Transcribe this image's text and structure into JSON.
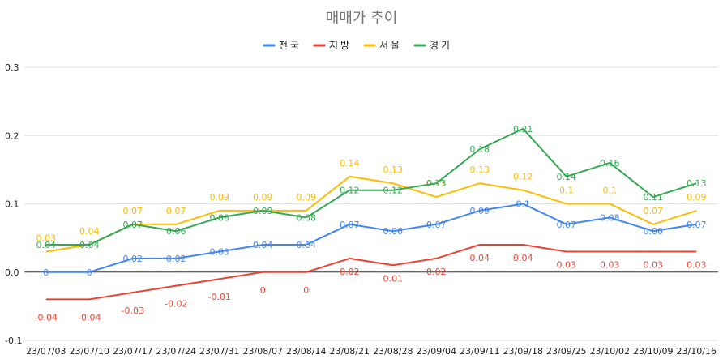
{
  "chart_data": {
    "type": "line",
    "title": "매매가 추이",
    "xlabel": "",
    "ylabel": "",
    "ylim": [
      -0.1,
      0.3
    ],
    "yticks": [
      "-0.1",
      "0.0",
      "0.1",
      "0.2",
      "0.3"
    ],
    "grid": true,
    "legend_position": "top",
    "categories": [
      "23/07/03",
      "23/07/10",
      "23/07/17",
      "23/07/24",
      "23/07/31",
      "23/08/07",
      "23/08/14",
      "23/08/21",
      "23/08/28",
      "23/09/04",
      "23/09/11",
      "23/09/18",
      "23/09/25",
      "23/10/02",
      "23/10/09",
      "23/10/16"
    ],
    "series": [
      {
        "name": "전국",
        "color": "#4285F4",
        "values": [
          0,
          0,
          0.02,
          0.02,
          0.03,
          0.04,
          0.04,
          0.07,
          0.06,
          0.07,
          0.09,
          0.1,
          0.07,
          0.08,
          0.06,
          0.07
        ],
        "labels": [
          "0",
          "0",
          "0.02",
          "0.02",
          "0.03",
          "0.04",
          "0.04",
          "0.07",
          "0.06",
          "0.07",
          "0.09",
          "0.1",
          "0.07",
          "0.08",
          "0.06",
          "0.07"
        ]
      },
      {
        "name": "지방",
        "color": "#EA4335",
        "values": [
          -0.04,
          -0.04,
          -0.03,
          -0.02,
          -0.01,
          0,
          0,
          0.02,
          0.01,
          0.02,
          0.04,
          0.04,
          0.03,
          0.03,
          0.03,
          0.03
        ],
        "labels": [
          "-0.04",
          "-0.04",
          "-0.03",
          "-0.02",
          "-0.01",
          "0",
          "0",
          "0.02",
          "0.01",
          "0.02",
          "0.04",
          "0.04",
          "0.03",
          "0.03",
          "0.03",
          "0.03"
        ]
      },
      {
        "name": "서울",
        "color": "#FBBC04",
        "values": [
          0.03,
          0.04,
          0.07,
          0.07,
          0.09,
          0.09,
          0.09,
          0.14,
          0.13,
          0.11,
          0.13,
          0.12,
          0.1,
          0.1,
          0.07,
          0.09
        ],
        "labels": [
          "0.03",
          "0.04",
          "0.07",
          "0.07",
          "0.09",
          "0.09",
          "0.09",
          "0.14",
          "0.13",
          "0.11",
          "0.13",
          "0.12",
          "0.1",
          "0.1",
          "0.07",
          "0.09"
        ]
      },
      {
        "name": "경기",
        "color": "#34A853",
        "values": [
          0.04,
          0.04,
          0.07,
          0.06,
          0.08,
          0.09,
          0.08,
          0.12,
          0.12,
          0.13,
          0.18,
          0.21,
          0.14,
          0.16,
          0.11,
          0.13
        ],
        "labels": [
          "0.04",
          "0.04",
          "0.07",
          "0.06",
          "0.08",
          "0.09",
          "0.08",
          "0.12",
          "0.12",
          "0.13",
          "0.18",
          "0.21",
          "0.14",
          "0.16",
          "0.11",
          "0.13"
        ]
      }
    ]
  }
}
